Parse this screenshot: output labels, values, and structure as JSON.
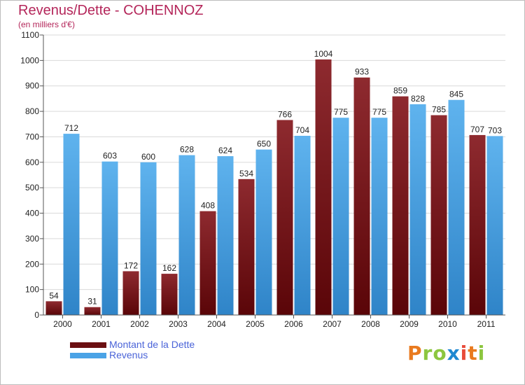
{
  "header": {
    "title": "Revenus/Dette - COHENNOZ",
    "subtitle": "(en milliers d'€)"
  },
  "legend": {
    "items": [
      {
        "label": "Montant de la Dette",
        "color": "#6b0f12"
      },
      {
        "label": "Revenus",
        "color": "#4aa3e6"
      }
    ]
  },
  "logo": {
    "text": "Proxiti",
    "letters": [
      {
        "ch": "P",
        "color": "#e97a1e"
      },
      {
        "ch": "r",
        "color": "#8cc63f"
      },
      {
        "ch": "o",
        "color": "#8cc63f"
      },
      {
        "ch": "x",
        "color": "#1e88d1"
      },
      {
        "ch": "i",
        "color": "#e84b3a"
      },
      {
        "ch": "t",
        "color": "#e97a1e"
      },
      {
        "ch": "i",
        "color": "#8cc63f"
      }
    ]
  },
  "chart_data": {
    "type": "bar",
    "title": "Revenus/Dette - COHENNOZ",
    "ylabel": "(en milliers d'€)",
    "xlabel": "",
    "categories": [
      "2000",
      "2001",
      "2002",
      "2003",
      "2004",
      "2005",
      "2006",
      "2007",
      "2008",
      "2009",
      "2010",
      "2011"
    ],
    "series": [
      {
        "name": "Montant de la Dette",
        "color": "#6b0f12",
        "values": [
          54,
          31,
          172,
          162,
          408,
          534,
          766,
          1004,
          933,
          859,
          785,
          707
        ]
      },
      {
        "name": "Revenus",
        "color": "#4aa3e6",
        "values": [
          712,
          603,
          600,
          628,
          624,
          650,
          704,
          775,
          775,
          828,
          845,
          703
        ]
      }
    ],
    "ylim": [
      0,
      1100
    ],
    "yticks": [
      0,
      100,
      200,
      300,
      400,
      500,
      600,
      700,
      800,
      900,
      1000,
      1100
    ],
    "grid": true,
    "legend_position": "bottom-left"
  }
}
